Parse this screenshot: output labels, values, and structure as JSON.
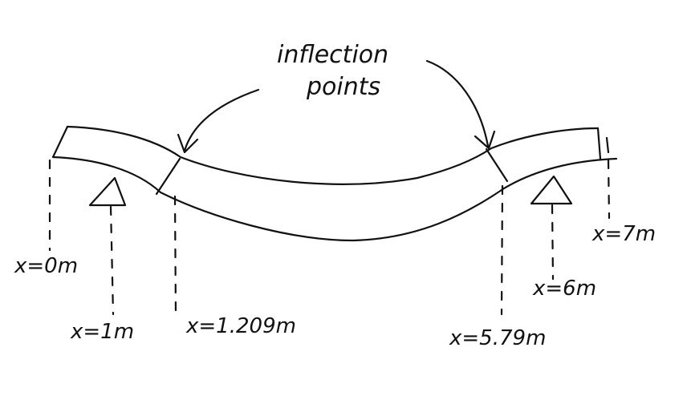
{
  "annotation": {
    "line1": "inflection",
    "line2": "points"
  },
  "labels": {
    "x0": "x=0m",
    "x1": "x=1m",
    "x_ip1": "x=1.209m",
    "x_ip2": "x=5.79m",
    "x6": "x=6m",
    "x7": "x=7m"
  }
}
